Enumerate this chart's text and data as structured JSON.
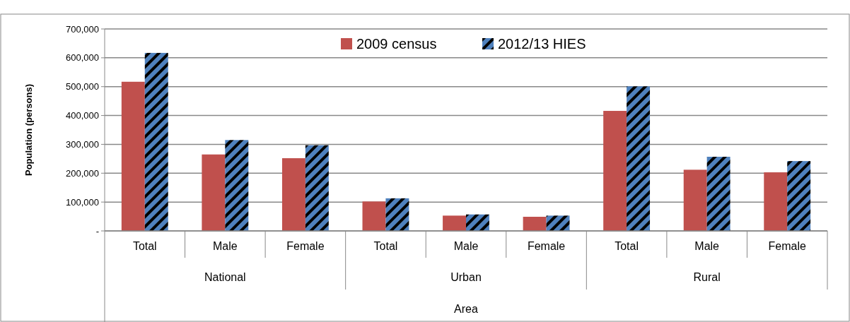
{
  "chart_data": {
    "type": "bar",
    "ylabel": "Population (persons)",
    "xlabel": "Area",
    "categories": [
      "Total",
      "Male",
      "Female",
      "Total",
      "Male",
      "Female",
      "Total",
      "Male",
      "Female"
    ],
    "annotations": [
      "National",
      "Urban",
      "Rural"
    ],
    "series": [
      {
        "name": "2009 census",
        "color": "#c0504d",
        "values": [
          517000,
          265000,
          252000,
          102000,
          53000,
          49000,
          416000,
          212000,
          203000
        ]
      },
      {
        "name": "2012/13 HIES",
        "color": "#4f81bd",
        "values": [
          617000,
          315000,
          297000,
          113000,
          57000,
          53000,
          501000,
          257000,
          242000
        ]
      }
    ],
    "ylim": [
      0,
      700000
    ],
    "yticks": [
      {
        "value": 0,
        "label": "-"
      },
      {
        "value": 100000,
        "label": "100,000"
      },
      {
        "value": 200000,
        "label": "200,000"
      },
      {
        "value": 300000,
        "label": "300,000"
      },
      {
        "value": 400000,
        "label": "400,000"
      },
      {
        "value": 500000,
        "label": "500,000"
      },
      {
        "value": 600000,
        "label": "600,000"
      },
      {
        "value": 700000,
        "label": "700,000"
      }
    ],
    "grid": "y",
    "legend": "top"
  }
}
